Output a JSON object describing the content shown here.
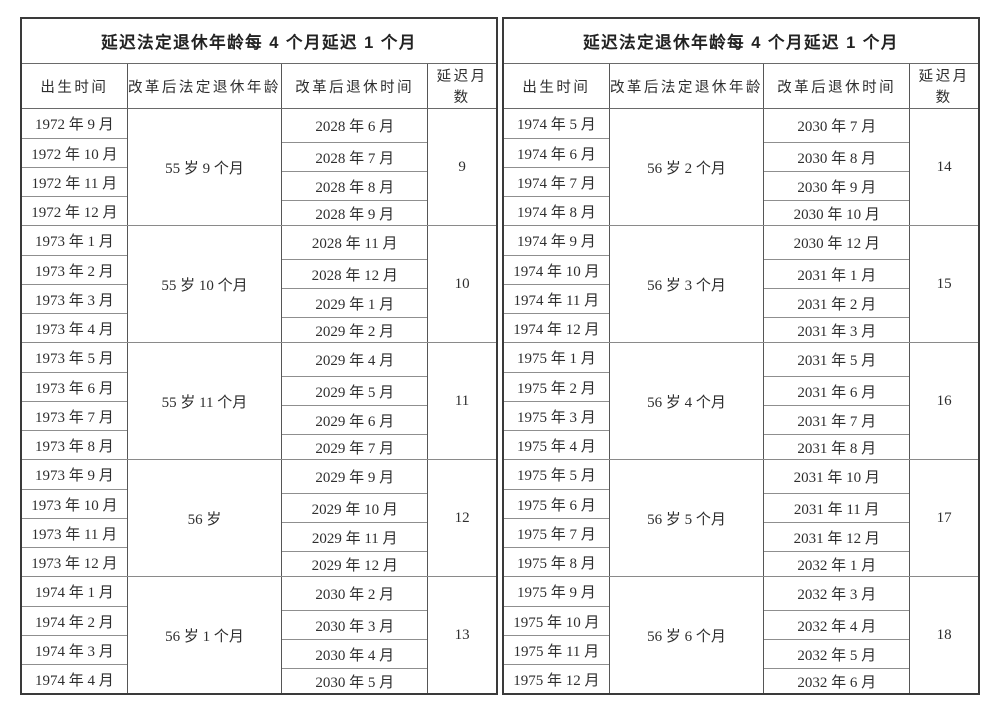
{
  "colors": {
    "page_background": "#ffffff",
    "outer_border": "#3a3a3a",
    "column_border": "#565656",
    "row_border": "#8f8f8f",
    "text": "#2e2e2e"
  },
  "table": {
    "title": "延迟法定退休年龄每 4 个月延迟 1 个月",
    "columns": [
      "出生时间",
      "改革后法定退休年龄",
      "改革后退休时间",
      "延迟月数"
    ],
    "panels": [
      {
        "groups": [
          {
            "births": [
              "1972 年 9 月",
              "1972 年 10 月",
              "1972 年 11 月",
              "1972 年 12 月"
            ],
            "age": "55 岁 9 个月",
            "retirements": [
              "2028 年 6 月",
              "2028 年 7 月",
              "2028 年 8 月",
              "2028 年 9 月"
            ],
            "delay": "9"
          },
          {
            "births": [
              "1973 年 1 月",
              "1973 年 2 月",
              "1973 年 3 月",
              "1973 年 4 月"
            ],
            "age": "55 岁 10 个月",
            "retirements": [
              "2028 年 11 月",
              "2028 年 12 月",
              "2029 年 1 月",
              "2029 年 2 月"
            ],
            "delay": "10"
          },
          {
            "births": [
              "1973 年 5 月",
              "1973 年 6 月",
              "1973 年 7 月",
              "1973 年 8 月"
            ],
            "age": "55 岁 11 个月",
            "retirements": [
              "2029 年 4 月",
              "2029 年 5 月",
              "2029 年 6 月",
              "2029 年 7 月"
            ],
            "delay": "11"
          },
          {
            "births": [
              "1973 年 9 月",
              "1973 年 10 月",
              "1973 年 11 月",
              "1973 年 12 月"
            ],
            "age": "56 岁",
            "retirements": [
              "2029 年 9 月",
              "2029 年 10 月",
              "2029 年 11 月",
              "2029 年 12 月"
            ],
            "delay": "12"
          },
          {
            "births": [
              "1974 年 1 月",
              "1974 年 2 月",
              "1974 年 3 月",
              "1974 年 4 月"
            ],
            "age": "56 岁 1 个月",
            "retirements": [
              "2030 年 2 月",
              "2030 年 3 月",
              "2030 年 4 月",
              "2030 年 5 月"
            ],
            "delay": "13"
          }
        ]
      },
      {
        "groups": [
          {
            "births": [
              "1974 年 5 月",
              "1974 年 6 月",
              "1974 年 7 月",
              "1974 年 8 月"
            ],
            "age": "56 岁 2 个月",
            "retirements": [
              "2030 年 7 月",
              "2030 年 8 月",
              "2030 年 9 月",
              "2030 年 10 月"
            ],
            "delay": "14"
          },
          {
            "births": [
              "1974 年 9 月",
              "1974 年 10 月",
              "1974 年 11 月",
              "1974 年 12 月"
            ],
            "age": "56 岁 3 个月",
            "retirements": [
              "2030 年 12 月",
              "2031 年 1 月",
              "2031 年 2 月",
              "2031 年 3 月"
            ],
            "delay": "15"
          },
          {
            "births": [
              "1975 年 1 月",
              "1975 年 2 月",
              "1975 年 3 月",
              "1975 年 4 月"
            ],
            "age": "56 岁 4 个月",
            "retirements": [
              "2031 年 5 月",
              "2031 年 6 月",
              "2031 年 7 月",
              "2031 年 8 月"
            ],
            "delay": "16"
          },
          {
            "births": [
              "1975 年 5 月",
              "1975 年 6 月",
              "1975 年 7 月",
              "1975 年 8 月"
            ],
            "age": "56 岁 5 个月",
            "retirements": [
              "2031 年 10 月",
              "2031 年 11 月",
              "2031 年 12 月",
              "2032 年 1 月"
            ],
            "delay": "17"
          },
          {
            "births": [
              "1975 年 9 月",
              "1975 年 10 月",
              "1975 年 11 月",
              "1975 年 12 月"
            ],
            "age": "56 岁 6 个月",
            "retirements": [
              "2032 年 3 月",
              "2032 年 4 月",
              "2032 年 5 月",
              "2032 年 6 月"
            ],
            "delay": "18"
          }
        ]
      }
    ]
  }
}
